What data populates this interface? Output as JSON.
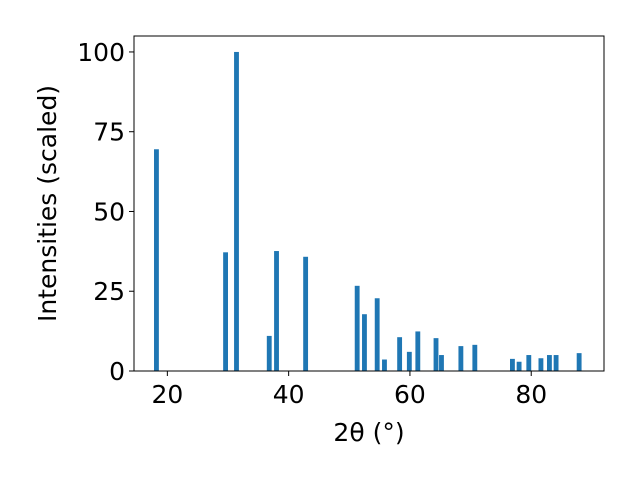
{
  "chart_data": {
    "type": "bar",
    "title": "",
    "xlabel": "2θ (°)",
    "ylabel": "Intensities (scaled)",
    "xlim": [
      14.5,
      92
    ],
    "ylim": [
      0,
      105
    ],
    "xticks": [
      20,
      40,
      60,
      80
    ],
    "yticks": [
      0,
      25,
      50,
      75,
      100
    ],
    "grid": false,
    "legend": "none",
    "bar_color": "#1f77b4",
    "bar_width": 0.8,
    "series": [
      {
        "x": [
          18.2,
          29.6,
          31.4,
          36.8,
          38.0,
          42.8,
          51.3,
          52.5,
          54.6,
          55.8,
          58.3,
          59.9,
          61.3,
          64.3,
          65.2,
          68.4,
          70.7,
          76.9,
          78.0,
          79.6,
          81.6,
          83.0,
          84.1,
          87.9
        ],
        "values": [
          69.5,
          37.2,
          100,
          11,
          37.6,
          35.8,
          26.7,
          17.8,
          22.8,
          3.6,
          10.6,
          6.0,
          12.4,
          10.3,
          5.0,
          7.8,
          8.2,
          3.8,
          2.9,
          5.0,
          4.0,
          5.0,
          5.0,
          5.6
        ]
      }
    ]
  }
}
